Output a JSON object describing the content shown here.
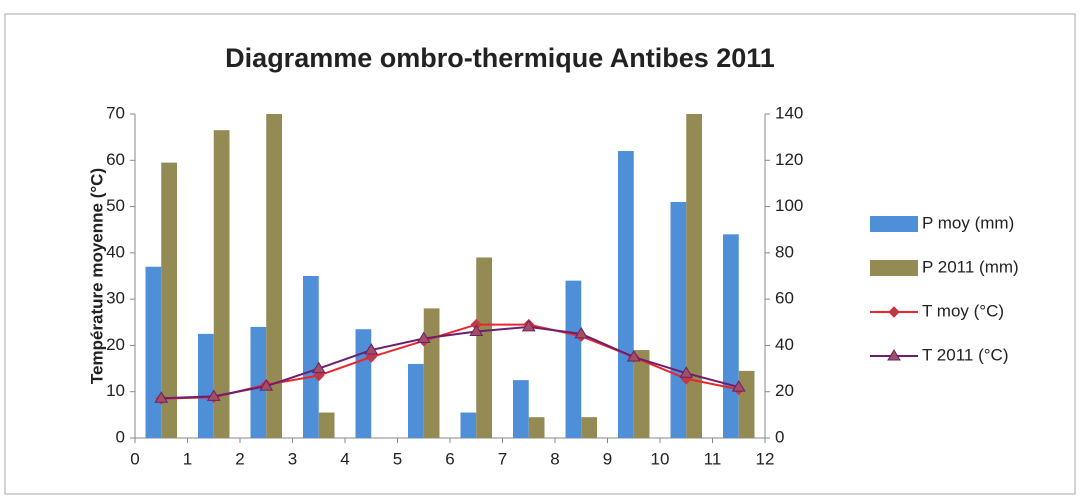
{
  "chart_data": {
    "type": "bar-line",
    "title": "Diagramme ombro-thermique Antibes 2011",
    "ylabel": "Température moyenne (°C)",
    "x": [
      0.5,
      1.5,
      2.5,
      3.5,
      4.5,
      5.5,
      6.5,
      7.5,
      8.5,
      9.5,
      10.5,
      11.5
    ],
    "series": [
      {
        "name": "P moy (mm)",
        "kind": "bar",
        "axis": "y2",
        "color": "#4f8fd8",
        "values": [
          74,
          45,
          48,
          70,
          47,
          32,
          11,
          25,
          68,
          124,
          102,
          88
        ]
      },
      {
        "name": "P 2011 (mm)",
        "kind": "bar",
        "axis": "y2",
        "color": "#948a54",
        "values": [
          119,
          133,
          140,
          11,
          0,
          56,
          78,
          9,
          9,
          38,
          140,
          29
        ]
      },
      {
        "name": "T moy (°C)",
        "kind": "line",
        "marker": "diamond",
        "color": "#e8262c",
        "values": [
          8.5,
          8.8,
          11.5,
          13.5,
          17.5,
          21,
          24.5,
          24.5,
          22,
          17.5,
          12.8,
          10.5
        ]
      },
      {
        "name": "T 2011 (°C)",
        "kind": "line",
        "marker": "triangle",
        "color": "#6b1f6e",
        "values": [
          8.6,
          9,
          11.2,
          15,
          19,
          21.5,
          23,
          24,
          22.5,
          17.5,
          14,
          11
        ]
      }
    ],
    "xlim": [
      0,
      12
    ],
    "xticks": [
      0,
      1,
      2,
      3,
      4,
      5,
      6,
      7,
      8,
      9,
      10,
      11,
      12
    ],
    "ylim": [
      0,
      70
    ],
    "yticks": [
      0,
      10,
      20,
      30,
      40,
      50,
      60,
      70
    ],
    "y2lim": [
      0,
      140
    ],
    "y2ticks": [
      0,
      20,
      40,
      60,
      80,
      100,
      120,
      140
    ],
    "grid": false,
    "legend": "right"
  }
}
